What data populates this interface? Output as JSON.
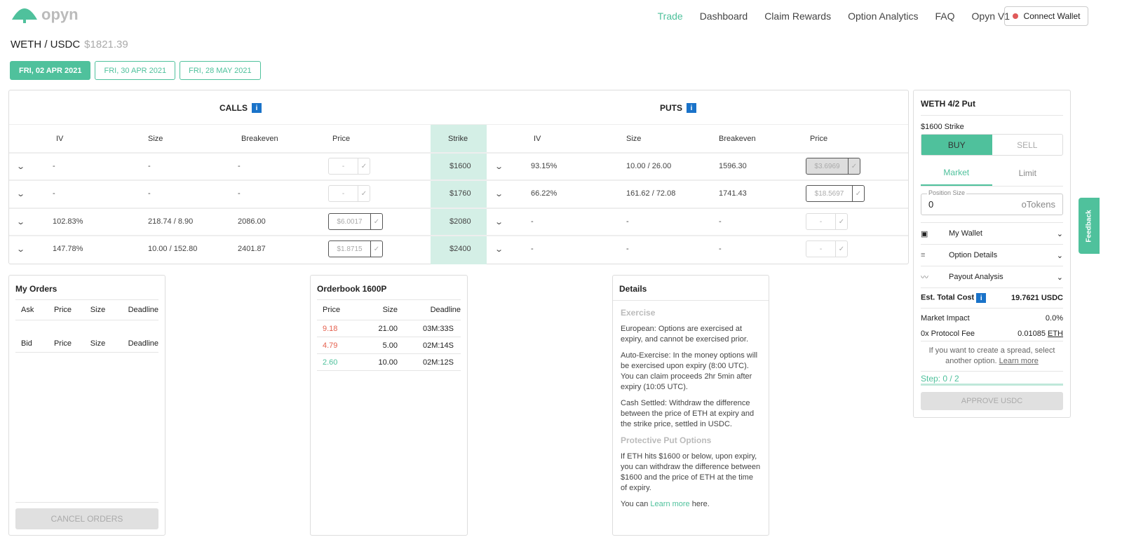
{
  "header": {
    "logo": "opyn",
    "nav": [
      "Trade",
      "Dashboard",
      "Claim Rewards",
      "Option Analytics",
      "FAQ",
      "Opyn V1"
    ],
    "active_nav": "Trade",
    "connect": "Connect Wallet"
  },
  "market": {
    "pair": "WETH / USDC",
    "price": "$1821.39"
  },
  "dates": [
    "FRI, 02 APR 2021",
    "FRI, 30 APR 2021",
    "FRI, 28 MAY 2021"
  ],
  "chain": {
    "calls_label": "CALLS",
    "puts_label": "PUTS",
    "columns": {
      "iv": "IV",
      "size": "Size",
      "breakeven": "Breakeven",
      "price": "Price",
      "strike": "Strike"
    },
    "rows": [
      {
        "strike": "$1600",
        "call": {
          "iv": "-",
          "size": "-",
          "breakeven": "-",
          "price": "-"
        },
        "put": {
          "iv": "93.15%",
          "size": "10.00 / 26.00",
          "breakeven": "1596.30",
          "price": "$3.6969"
        }
      },
      {
        "strike": "$1760",
        "call": {
          "iv": "-",
          "size": "-",
          "breakeven": "-",
          "price": "-"
        },
        "put": {
          "iv": "66.22%",
          "size": "161.62 / 72.08",
          "breakeven": "1741.43",
          "price": "$18.5697"
        }
      },
      {
        "strike": "$2080",
        "call": {
          "iv": "102.83%",
          "size": "218.74 / 8.90",
          "breakeven": "2086.00",
          "price": "$6.0017"
        },
        "put": {
          "iv": "-",
          "size": "-",
          "breakeven": "-",
          "price": "-"
        }
      },
      {
        "strike": "$2400",
        "call": {
          "iv": "147.78%",
          "size": "10.00 / 152.80",
          "breakeven": "2401.87",
          "price": "$1.8715"
        },
        "put": {
          "iv": "-",
          "size": "-",
          "breakeven": "-",
          "price": "-"
        }
      }
    ]
  },
  "trade": {
    "title": "WETH 4/2 Put",
    "strike": "$1600 Strike",
    "buy": "BUY",
    "sell": "SELL",
    "market": "Market",
    "limit": "Limit",
    "position_label": "Position Size",
    "position_value": "0",
    "unit": "oTokens",
    "accordions": [
      "My Wallet",
      "Option Details",
      "Payout Analysis"
    ],
    "cost_label": "Est. Total Cost",
    "cost": "19.7621 USDC",
    "impact_label": "Market Impact",
    "impact": "0.0%",
    "fee_label": "0x Protocol Fee",
    "fee": "0.01085",
    "fee_unit": "ETH",
    "spread_text": "If you want to create a spread, select another option.",
    "learn_more": "Learn more",
    "step": "Step: 0 / 2",
    "step_progress": 0,
    "approve": "APPROVE USDC"
  },
  "orders": {
    "title": "My Orders",
    "ask_headers": [
      "Ask",
      "Price",
      "Size",
      "Deadline"
    ],
    "bid_headers": [
      "Bid",
      "Price",
      "Size",
      "Deadline"
    ],
    "cancel": "CANCEL ORDERS"
  },
  "orderbook": {
    "title": "Orderbook 1600P",
    "headers": [
      "Price",
      "Size",
      "Deadline"
    ],
    "rows": [
      {
        "price": "9.18",
        "size": "21.00",
        "deadline": "03M:33S",
        "side": "ask"
      },
      {
        "price": "4.79",
        "size": "5.00",
        "deadline": "02M:14S",
        "side": "ask"
      },
      {
        "price": "2.60",
        "size": "10.00",
        "deadline": "02M:12S",
        "side": "bid"
      }
    ]
  },
  "details": {
    "title": "Details",
    "exercise_h": "Exercise",
    "p1": "European: Options are exercised at expiry, and cannot be exercised prior.",
    "p2": "Auto-Exercise: In the money options will be exercised upon expiry (8:00 UTC). You can claim proceeds 2hr 5min after expiry (10:05 UTC).",
    "p3": "Cash Settled: Withdraw the difference between the price of ETH at expiry and the strike price, settled in USDC.",
    "put_h": "Protective Put Options",
    "p4": "If ETH hits $1600 or below, upon expiry, you can withdraw the difference between $1600 and the price of ETH at the time of expiry.",
    "p5_pre": "You can",
    "p5_link": "Learn more",
    "p5_post": "here."
  },
  "feedback": "Feedback",
  "colors": {
    "accent": "#4fc19c",
    "ask": "#e5604e",
    "bid": "#4fc19c",
    "info": "#1a73c9"
  }
}
